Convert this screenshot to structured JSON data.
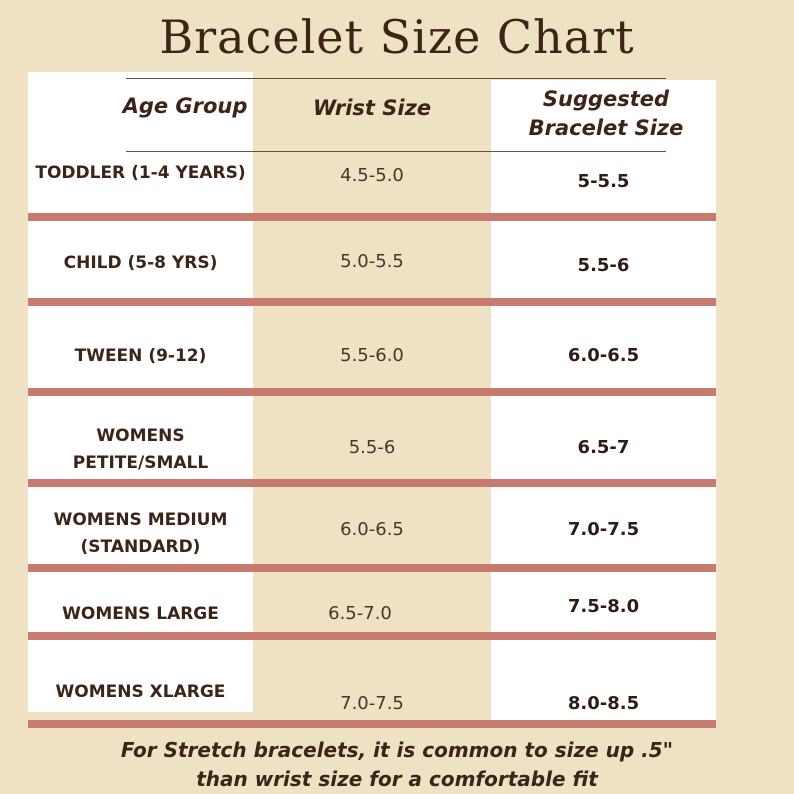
{
  "title": "Bracelet Size Chart",
  "headers": {
    "age_group": "Age Group",
    "wrist_size": "Wrist Size",
    "suggested_line1": "Suggested",
    "suggested_line2": "Bracelet Size"
  },
  "rows": [
    {
      "age": "TODDLER (1-4 YEARS)",
      "age2": "",
      "wrist": "4.5-5.0",
      "suggested": "5-5.5"
    },
    {
      "age": "CHILD (5-8 YRS)",
      "age2": "",
      "wrist": "5.0-5.5",
      "suggested": "5.5-6"
    },
    {
      "age": "TWEEN (9-12)",
      "age2": "",
      "wrist": "5.5-6.0",
      "suggested": "6.0-6.5"
    },
    {
      "age": "WOMENS",
      "age2": "PETITE/SMALL",
      "wrist": "5.5-6",
      "suggested": "6.5-7"
    },
    {
      "age": "WOMENS MEDIUM",
      "age2": "(STANDARD)",
      "wrist": "6.0-6.5",
      "suggested": "7.0-7.5"
    },
    {
      "age": "WOMENS LARGE",
      "age2": "",
      "wrist": "6.5-7.0",
      "suggested": "7.5-8.0"
    },
    {
      "age": "WOMENS  XLARGE",
      "age2": "",
      "wrist": "7.0-7.5",
      "suggested": "8.0-8.5"
    }
  ],
  "footer": {
    "line1": "For Stretch bracelets,  it is common to size up .5\"",
    "line2": "than wrist size for a comfortable fit"
  },
  "colors": {
    "background": "#efe1c4",
    "separator": "#c77b70",
    "text": "#3b2418"
  }
}
